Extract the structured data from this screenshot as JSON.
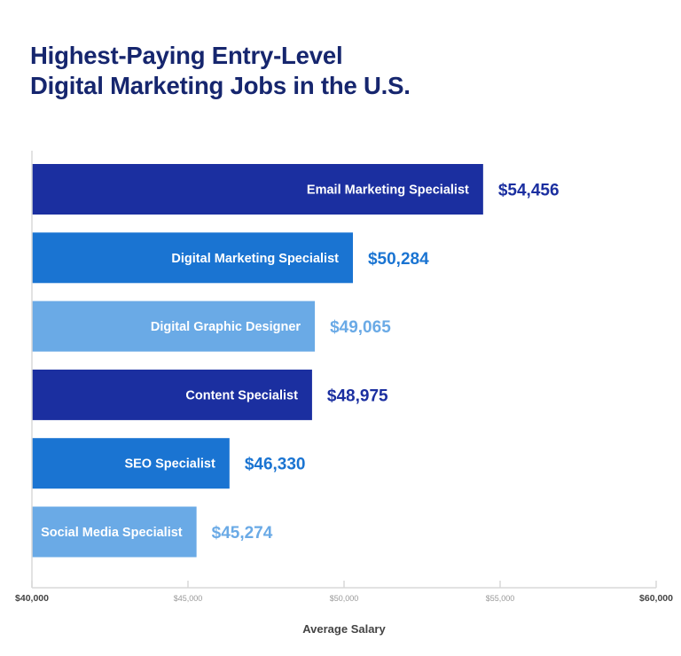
{
  "chart_data": {
    "type": "bar",
    "orientation": "horizontal",
    "title": [
      "Highest-Paying Entry-Level",
      "Digital Marketing Jobs in the U.S."
    ],
    "xlabel": "Average Salary",
    "ylabel": "",
    "xlim": [
      40000,
      60000
    ],
    "x_ticks": [
      {
        "value": 40000,
        "label": "$40,000"
      },
      {
        "value": 45000,
        "label": "$45,000"
      },
      {
        "value": 50000,
        "label": "$50,000"
      },
      {
        "value": 55000,
        "label": "$55,000"
      },
      {
        "value": 60000,
        "label": "$60,000"
      }
    ],
    "grid": false,
    "categories": [
      "Email Marketing Specialist",
      "Digital Marketing Specialist",
      "Digital Graphic Designer",
      "Content Specialist",
      "SEO Specialist",
      "Social Media Specialist"
    ],
    "values": [
      54456,
      50284,
      49065,
      48975,
      46330,
      45274
    ],
    "value_labels": [
      "$54,456",
      "$50,284",
      "$49,065",
      "$48,975",
      "$46,330",
      "$45,274"
    ],
    "bar_colors": [
      "#1b2fa0",
      "#1a74d2",
      "#6aaae6",
      "#1b2fa0",
      "#1a74d2",
      "#6aaae6"
    ]
  }
}
